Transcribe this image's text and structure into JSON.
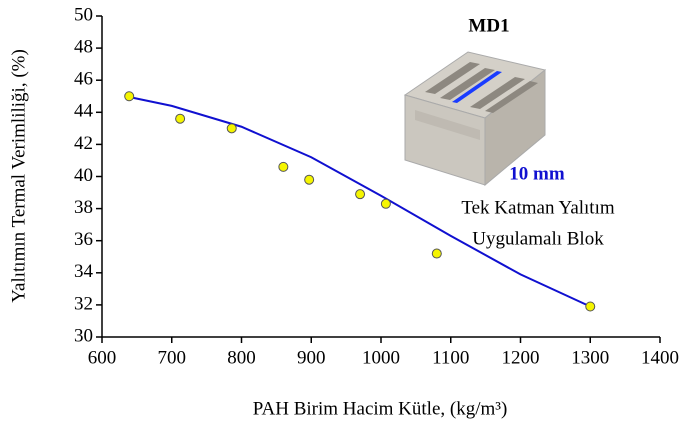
{
  "chart_data": {
    "type": "scatter",
    "xlabel": "PAH Birim Hacim Kütle, (kg/m³)",
    "ylabel": "Yalıtımın Termal Verimliliği, (%)",
    "annotations": [
      "MD1",
      "10  mm",
      "Tek Katman Yalıtım",
      "Uygulamalı Blok"
    ],
    "xlim": [
      600,
      1400
    ],
    "xticks": [
      600,
      700,
      800,
      900,
      1000,
      1100,
      1200,
      1300,
      1400
    ],
    "ylim": [
      30,
      50
    ],
    "yticks": [
      30,
      32,
      34,
      36,
      38,
      40,
      42,
      44,
      46,
      48,
      50
    ],
    "points": {
      "color": "#f5f500",
      "x": [
        639,
        712,
        786,
        860,
        897,
        970,
        1007,
        1080,
        1300
      ],
      "values": [
        45.0,
        43.6,
        43.0,
        40.6,
        39.8,
        38.9,
        38.3,
        35.2,
        31.9
      ]
    },
    "fit": {
      "color": "#1010d0",
      "x": [
        645,
        700,
        800,
        900,
        1000,
        1100,
        1200,
        1300
      ],
      "values": [
        44.9,
        44.4,
        43.1,
        41.2,
        38.8,
        36.3,
        33.9,
        31.9
      ]
    }
  }
}
